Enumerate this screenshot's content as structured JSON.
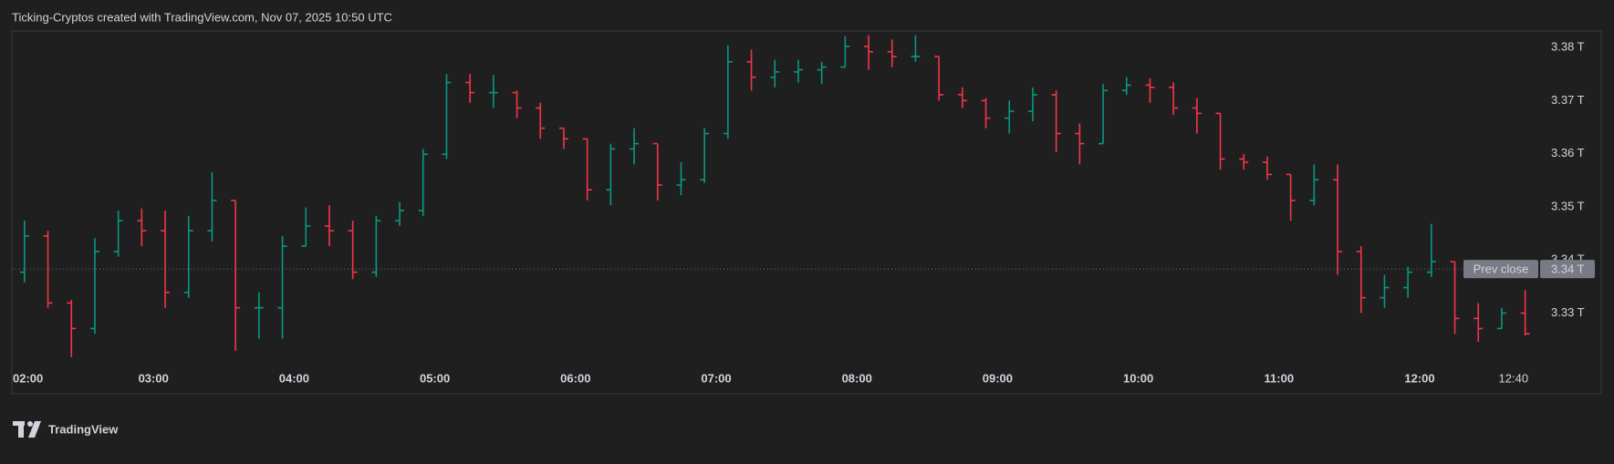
{
  "chart_data": {
    "type": "ohlc",
    "title": "Ticking-Cryptos created with TradingView.com, Nov 07, 2025 10:50 UTC",
    "categories": [
      "02:00",
      "02:10",
      "02:20",
      "02:30",
      "02:40",
      "02:50",
      "03:00",
      "03:10",
      "03:20",
      "03:30",
      "03:40",
      "03:50",
      "04:00",
      "04:10",
      "04:20",
      "04:30",
      "04:40",
      "04:50",
      "05:00",
      "05:10",
      "05:20",
      "05:30",
      "05:40",
      "05:50",
      "06:00",
      "06:10",
      "06:20",
      "06:30",
      "06:40",
      "06:50",
      "07:00",
      "07:10",
      "07:20",
      "07:30",
      "07:40",
      "07:50",
      "08:00",
      "08:10",
      "08:20",
      "08:30",
      "08:40",
      "08:50",
      "09:00",
      "09:10",
      "09:20",
      "09:30",
      "09:40",
      "09:50",
      "10:00",
      "10:10",
      "10:20",
      "10:30",
      "10:40",
      "10:50",
      "11:00",
      "11:10",
      "11:20",
      "11:30",
      "11:40",
      "11:50",
      "12:00",
      "12:10",
      "12:20",
      "12:30",
      "12:40"
    ],
    "open": [
      3.3377,
      3.3445,
      3.3319,
      3.3271,
      3.3416,
      3.3474,
      3.3455,
      3.3339,
      3.3455,
      3.3512,
      3.331,
      3.331,
      3.3426,
      3.3464,
      3.3455,
      3.3377,
      3.3474,
      3.3493,
      3.3599,
      3.3734,
      3.3715,
      3.3715,
      3.3686,
      3.3648,
      3.3628,
      3.3532,
      3.3609,
      3.3619,
      3.3541,
      3.3551,
      3.3638,
      3.3773,
      3.3744,
      3.3754,
      3.3758,
      3.3763,
      3.3802,
      3.3792,
      3.3783,
      3.3783,
      3.3711,
      3.37,
      3.3667,
      3.368,
      3.3711,
      3.3638,
      3.3619,
      3.3719,
      3.3729,
      3.3725,
      3.3686,
      3.3676,
      3.359,
      3.3584,
      3.3561,
      3.3512,
      3.3551,
      3.3416,
      3.3329,
      3.3348,
      3.3377,
      3.3397,
      3.329,
      3.3271,
      3.33
    ],
    "high": [
      3.3474,
      3.3455,
      3.3325,
      3.3441,
      3.3493,
      3.3497,
      3.3493,
      3.3483,
      3.3565,
      3.3512,
      3.3339,
      3.3445,
      3.3499,
      3.3503,
      3.3474,
      3.3483,
      3.3509,
      3.3609,
      3.375,
      3.375,
      3.3748,
      3.3719,
      3.3696,
      3.3648,
      3.3628,
      3.3619,
      3.3648,
      3.3619,
      3.3584,
      3.3648,
      3.3804,
      3.3796,
      3.3777,
      3.3777,
      3.3773,
      3.3821,
      3.3823,
      3.3815,
      3.3823,
      3.3783,
      3.3725,
      3.3705,
      3.37,
      3.3725,
      3.3719,
      3.3657,
      3.3731,
      3.3744,
      3.3742,
      3.3734,
      3.3705,
      3.3676,
      3.3599,
      3.3595,
      3.3561,
      3.358,
      3.358,
      3.3426,
      3.3372,
      3.3387,
      3.3468,
      3.3397,
      3.3319,
      3.331,
      3.3343
    ],
    "low": [
      3.3358,
      3.331,
      3.3217,
      3.3261,
      3.3406,
      3.3426,
      3.331,
      3.3329,
      3.3435,
      3.3229,
      3.3252,
      3.3252,
      3.3426,
      3.3426,
      3.3364,
      3.3368,
      3.3464,
      3.3483,
      3.359,
      3.3696,
      3.3686,
      3.3667,
      3.3628,
      3.3609,
      3.3512,
      3.3503,
      3.358,
      3.3512,
      3.3522,
      3.3545,
      3.3628,
      3.3719,
      3.3725,
      3.3734,
      3.3731,
      3.3763,
      3.3758,
      3.3763,
      3.3773,
      3.37,
      3.3686,
      3.3648,
      3.3638,
      3.3661,
      3.3603,
      3.358,
      3.3619,
      3.3711,
      3.3696,
      3.3673,
      3.3638,
      3.357,
      3.357,
      3.3551,
      3.3474,
      3.3503,
      3.3372,
      3.33,
      3.331,
      3.3329,
      3.3368,
      3.3261,
      3.3246,
      3.3271,
      3.3258
    ],
    "close": [
      3.3445,
      3.3319,
      3.3271,
      3.3416,
      3.3474,
      3.3455,
      3.3339,
      3.3455,
      3.3512,
      3.331,
      3.331,
      3.3426,
      3.3464,
      3.3455,
      3.3377,
      3.3474,
      3.3493,
      3.3599,
      3.3734,
      3.3715,
      3.3715,
      3.3686,
      3.3648,
      3.3628,
      3.3532,
      3.3609,
      3.3619,
      3.3541,
      3.3551,
      3.3638,
      3.3773,
      3.3744,
      3.3754,
      3.3758,
      3.3763,
      3.3802,
      3.3792,
      3.3783,
      3.3783,
      3.3711,
      3.37,
      3.3667,
      3.368,
      3.3711,
      3.3638,
      3.3619,
      3.3719,
      3.3729,
      3.3725,
      3.3686,
      3.3676,
      3.359,
      3.3584,
      3.3561,
      3.3512,
      3.3551,
      3.3416,
      3.3329,
      3.3348,
      3.3377,
      3.3397,
      3.329,
      3.3271,
      3.33,
      3.3261
    ],
    "up_color": "#089981",
    "down_color": "#f23645",
    "ylim": [
      3.3203,
      3.3831
    ],
    "yticks": [
      {
        "value": 3.33,
        "label": "3.33 T"
      },
      {
        "value": 3.34,
        "label": "3.34 T"
      },
      {
        "value": 3.35,
        "label": "3.35 T"
      },
      {
        "value": 3.36,
        "label": "3.36 T"
      },
      {
        "value": 3.37,
        "label": "3.37 T"
      },
      {
        "value": 3.38,
        "label": "3.38 T"
      }
    ],
    "xticks": [
      "02:00",
      "03:00",
      "04:00",
      "05:00",
      "06:00",
      "07:00",
      "08:00",
      "09:00",
      "10:00",
      "11:00",
      "12:00",
      "12:40"
    ],
    "prev_close": {
      "name": "Prev close",
      "value": 3.3383,
      "value_label": "3.34 T"
    }
  },
  "watermark": "TradingView"
}
